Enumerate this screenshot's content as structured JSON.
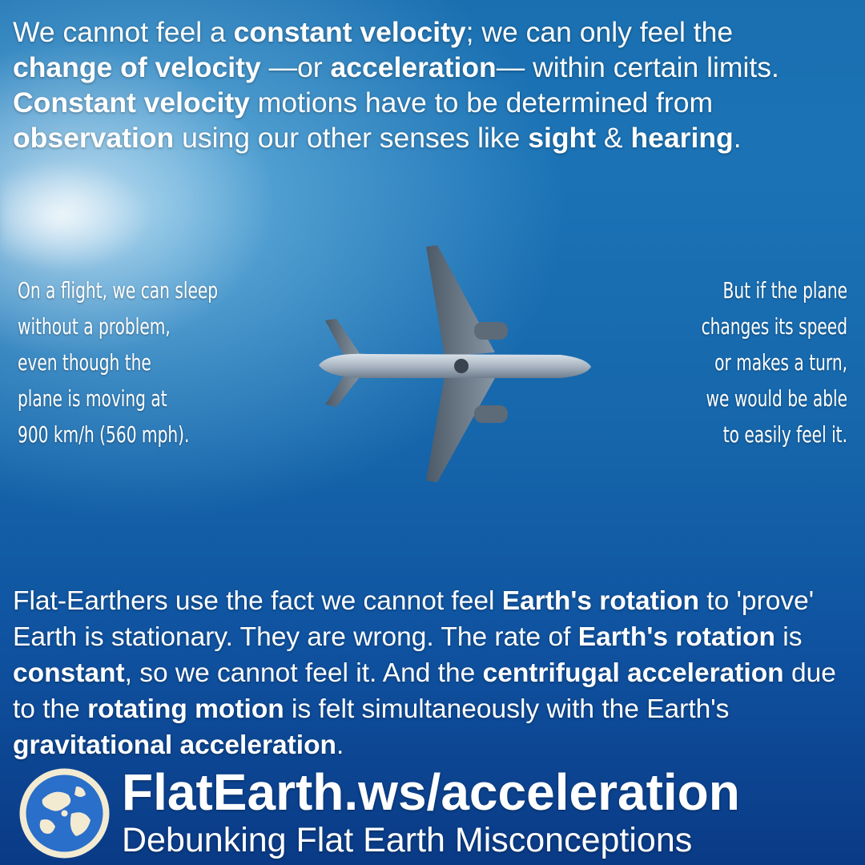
{
  "intro": {
    "line1_a": "We cannot feel a ",
    "line1_b": "constant velocity",
    "line1_c": "; we can only feel the",
    "line2_a": "change of velocity",
    "line2_b": " —or ",
    "line2_c": "acceleration",
    "line2_d": "— within certain limits.",
    "line3_a": "Constant velocity",
    "line3_b": " motions have to be determined from",
    "line4_a": "observation",
    "line4_b": " using our other senses like ",
    "line4_c": "sight",
    "line4_d": " & ",
    "line4_e": "hearing",
    "line4_f": "."
  },
  "left_note": [
    "On a flight, we can sleep",
    "without a problem,",
    "even though the",
    "plane is  moving at",
    "900 km/h (560 mph)."
  ],
  "right_note": [
    "But if the plane",
    "changes its speed",
    "or makes a turn,",
    "we would be able",
    "to easily feel it."
  ],
  "conclusion": {
    "a": "Flat-Earthers use the fact we cannot feel ",
    "b": "Earth's rotation",
    "c": " to 'prove' Earth is stationary. They are wrong. The rate of ",
    "d": "Earth's rotation",
    "e": " is ",
    "f": "constant",
    "g": ", so we cannot feel it. And the ",
    "h": "centrifugal acceleration",
    "i": " due to the ",
    "j": "rotating motion",
    "k": " is felt simultaneously with the Earth's ",
    "l": "gravitational acceleration",
    "m": "."
  },
  "footer": {
    "site": "FlatEarth.ws/acceleration",
    "tagline": "Debunking Flat Earth Misconceptions",
    "logo_icon": "globe-map-icon"
  },
  "colors": {
    "sky_top": "#1a6fb0",
    "sky_bottom": "#0a3a86",
    "text": "#ffffff",
    "logo_sea": "#2a6fc9",
    "logo_land": "#f3ead2"
  }
}
